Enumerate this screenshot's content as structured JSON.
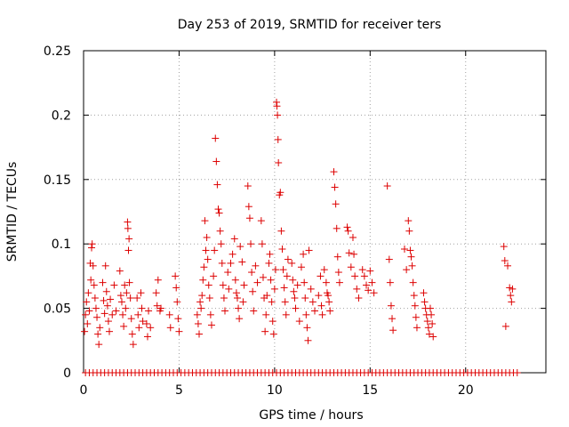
{
  "chart_data": {
    "type": "scatter",
    "title": "Day 253 of 2019, SRMTID for receiver ters",
    "xlabel": "GPS time / hours",
    "ylabel": "SRMTID / TECUs",
    "xlim": [
      0,
      24.2
    ],
    "ylim": [
      0,
      0.25
    ],
    "grid": true,
    "legend": "none",
    "marker": "+",
    "color": "#dd0000",
    "xticks": [
      0,
      5,
      10,
      15,
      20
    ],
    "xtick_labels": [
      "0",
      "5",
      "10",
      "15",
      "20"
    ],
    "yticks": [
      0,
      0.05,
      0.1,
      0.15,
      0.2,
      0.25
    ],
    "ytick_labels": [
      "0",
      "0.05",
      "0.1",
      "0.15",
      "0.2",
      "0.25"
    ],
    "series": [
      {
        "name": "SRMTID",
        "points": [
          [
            0.05,
            0.032
          ],
          [
            0.1,
            0.045
          ],
          [
            0.15,
            0.055
          ],
          [
            0.2,
            0.038
          ],
          [
            0.25,
            0.062
          ],
          [
            0.3,
            0.048
          ],
          [
            0.35,
            0.085
          ],
          [
            0.38,
            0.072
          ],
          [
            0.42,
            0.097
          ],
          [
            0.45,
            0.1
          ],
          [
            0.5,
            0.083
          ],
          [
            0.55,
            0.068
          ],
          [
            0.6,
            0.058
          ],
          [
            0.65,
            0.05
          ],
          [
            0.7,
            0.043
          ],
          [
            0.75,
            0.03
          ],
          [
            0.8,
            0.022
          ],
          [
            0.85,
            0.035
          ],
          [
            1.0,
            0.07
          ],
          [
            1.05,
            0.056
          ],
          [
            1.1,
            0.046
          ],
          [
            1.15,
            0.083
          ],
          [
            1.2,
            0.063
          ],
          [
            1.25,
            0.052
          ],
          [
            1.3,
            0.04
          ],
          [
            1.35,
            0.032
          ],
          [
            1.4,
            0.057
          ],
          [
            1.5,
            0.045
          ],
          [
            1.6,
            0.068
          ],
          [
            1.7,
            0.048
          ],
          [
            1.9,
            0.079
          ],
          [
            1.95,
            0.06
          ],
          [
            2.0,
            0.055
          ],
          [
            2.05,
            0.045
          ],
          [
            2.1,
            0.036
          ],
          [
            2.15,
            0.068
          ],
          [
            2.2,
            0.05
          ],
          [
            2.25,
            0.062
          ],
          [
            2.3,
            0.117
          ],
          [
            2.32,
            0.112
          ],
          [
            2.35,
            0.095
          ],
          [
            2.38,
            0.104
          ],
          [
            2.4,
            0.07
          ],
          [
            2.45,
            0.058
          ],
          [
            2.5,
            0.042
          ],
          [
            2.55,
            0.03
          ],
          [
            2.6,
            0.022
          ],
          [
            2.8,
            0.058
          ],
          [
            2.85,
            0.045
          ],
          [
            2.9,
            0.035
          ],
          [
            3.0,
            0.062
          ],
          [
            3.05,
            0.05
          ],
          [
            3.1,
            0.04
          ],
          [
            3.3,
            0.038
          ],
          [
            3.35,
            0.028
          ],
          [
            3.4,
            0.048
          ],
          [
            3.5,
            0.035
          ],
          [
            3.8,
            0.062
          ],
          [
            3.85,
            0.052
          ],
          [
            3.9,
            0.072
          ],
          [
            4.0,
            0.048
          ],
          [
            4.05,
            0.05
          ],
          [
            4.5,
            0.045
          ],
          [
            4.55,
            0.035
          ],
          [
            4.8,
            0.075
          ],
          [
            4.85,
            0.066
          ],
          [
            4.9,
            0.055
          ],
          [
            4.95,
            0.042
          ],
          [
            5.0,
            0.032
          ],
          [
            5.95,
            0.045
          ],
          [
            6.0,
            0.038
          ],
          [
            6.05,
            0.03
          ],
          [
            6.1,
            0.055
          ],
          [
            6.15,
            0.05
          ],
          [
            6.2,
            0.06
          ],
          [
            6.25,
            0.072
          ],
          [
            6.3,
            0.082
          ],
          [
            6.35,
            0.118
          ],
          [
            6.4,
            0.095
          ],
          [
            6.45,
            0.105
          ],
          [
            6.5,
            0.088
          ],
          [
            6.55,
            0.068
          ],
          [
            6.6,
            0.058
          ],
          [
            6.65,
            0.045
          ],
          [
            6.7,
            0.037
          ],
          [
            6.8,
            0.075
          ],
          [
            6.85,
            0.095
          ],
          [
            6.9,
            0.182
          ],
          [
            6.95,
            0.164
          ],
          [
            7.0,
            0.146
          ],
          [
            7.05,
            0.127
          ],
          [
            7.1,
            0.124
          ],
          [
            7.15,
            0.11
          ],
          [
            7.2,
            0.1
          ],
          [
            7.25,
            0.085
          ],
          [
            7.3,
            0.068
          ],
          [
            7.35,
            0.058
          ],
          [
            7.4,
            0.048
          ],
          [
            7.55,
            0.078
          ],
          [
            7.6,
            0.065
          ],
          [
            7.7,
            0.085
          ],
          [
            7.8,
            0.092
          ],
          [
            7.9,
            0.104
          ],
          [
            7.95,
            0.072
          ],
          [
            8.0,
            0.062
          ],
          [
            8.05,
            0.058
          ],
          [
            8.1,
            0.05
          ],
          [
            8.15,
            0.042
          ],
          [
            8.2,
            0.098
          ],
          [
            8.3,
            0.086
          ],
          [
            8.35,
            0.055
          ],
          [
            8.4,
            0.068
          ],
          [
            8.6,
            0.145
          ],
          [
            8.65,
            0.129
          ],
          [
            8.7,
            0.12
          ],
          [
            8.75,
            0.1
          ],
          [
            8.8,
            0.078
          ],
          [
            8.85,
            0.063
          ],
          [
            8.9,
            0.048
          ],
          [
            9.0,
            0.083
          ],
          [
            9.1,
            0.07
          ],
          [
            9.3,
            0.118
          ],
          [
            9.35,
            0.1
          ],
          [
            9.4,
            0.074
          ],
          [
            9.45,
            0.058
          ],
          [
            9.5,
            0.032
          ],
          [
            9.55,
            0.045
          ],
          [
            9.6,
            0.06
          ],
          [
            9.7,
            0.085
          ],
          [
            9.75,
            0.092
          ],
          [
            9.8,
            0.072
          ],
          [
            9.85,
            0.055
          ],
          [
            9.9,
            0.04
          ],
          [
            9.95,
            0.03
          ],
          [
            10.0,
            0.065
          ],
          [
            10.05,
            0.08
          ],
          [
            10.1,
            0.21
          ],
          [
            10.12,
            0.207
          ],
          [
            10.15,
            0.2
          ],
          [
            10.18,
            0.181
          ],
          [
            10.2,
            0.163
          ],
          [
            10.25,
            0.138
          ],
          [
            10.3,
            0.14
          ],
          [
            10.35,
            0.11
          ],
          [
            10.4,
            0.096
          ],
          [
            10.45,
            0.08
          ],
          [
            10.5,
            0.066
          ],
          [
            10.55,
            0.055
          ],
          [
            10.6,
            0.045
          ],
          [
            10.65,
            0.075
          ],
          [
            10.7,
            0.088
          ],
          [
            10.9,
            0.085
          ],
          [
            10.95,
            0.072
          ],
          [
            11.0,
            0.063
          ],
          [
            11.05,
            0.058
          ],
          [
            11.1,
            0.05
          ],
          [
            11.2,
            0.068
          ],
          [
            11.3,
            0.04
          ],
          [
            11.4,
            0.082
          ],
          [
            11.5,
            0.092
          ],
          [
            11.55,
            0.07
          ],
          [
            11.6,
            0.058
          ],
          [
            11.65,
            0.045
          ],
          [
            11.7,
            0.035
          ],
          [
            11.75,
            0.025
          ],
          [
            11.8,
            0.095
          ],
          [
            11.9,
            0.065
          ],
          [
            12.0,
            0.055
          ],
          [
            12.1,
            0.048
          ],
          [
            12.3,
            0.06
          ],
          [
            12.4,
            0.075
          ],
          [
            12.45,
            0.052
          ],
          [
            12.5,
            0.045
          ],
          [
            12.6,
            0.08
          ],
          [
            12.7,
            0.07
          ],
          [
            12.75,
            0.062
          ],
          [
            12.8,
            0.06
          ],
          [
            12.85,
            0.055
          ],
          [
            12.9,
            0.048
          ],
          [
            13.1,
            0.156
          ],
          [
            13.15,
            0.144
          ],
          [
            13.2,
            0.131
          ],
          [
            13.25,
            0.112
          ],
          [
            13.3,
            0.09
          ],
          [
            13.35,
            0.078
          ],
          [
            13.4,
            0.07
          ],
          [
            13.8,
            0.113
          ],
          [
            13.85,
            0.11
          ],
          [
            13.9,
            0.093
          ],
          [
            14.0,
            0.082
          ],
          [
            14.1,
            0.105
          ],
          [
            14.15,
            0.092
          ],
          [
            14.2,
            0.075
          ],
          [
            14.3,
            0.065
          ],
          [
            14.4,
            0.058
          ],
          [
            14.6,
            0.08
          ],
          [
            14.7,
            0.075
          ],
          [
            14.8,
            0.068
          ],
          [
            14.9,
            0.064
          ],
          [
            15.0,
            0.079
          ],
          [
            15.1,
            0.07
          ],
          [
            15.2,
            0.062
          ],
          [
            15.9,
            0.145
          ],
          [
            16.0,
            0.088
          ],
          [
            16.05,
            0.07
          ],
          [
            16.1,
            0.052
          ],
          [
            16.15,
            0.042
          ],
          [
            16.2,
            0.033
          ],
          [
            16.8,
            0.096
          ],
          [
            16.9,
            0.08
          ],
          [
            17.0,
            0.118
          ],
          [
            17.05,
            0.11
          ],
          [
            17.1,
            0.095
          ],
          [
            17.15,
            0.09
          ],
          [
            17.2,
            0.083
          ],
          [
            17.25,
            0.07
          ],
          [
            17.3,
            0.06
          ],
          [
            17.35,
            0.052
          ],
          [
            17.4,
            0.043
          ],
          [
            17.45,
            0.035
          ],
          [
            17.8,
            0.062
          ],
          [
            17.85,
            0.055
          ],
          [
            17.9,
            0.05
          ],
          [
            17.95,
            0.045
          ],
          [
            18.0,
            0.04
          ],
          [
            18.05,
            0.035
          ],
          [
            18.1,
            0.03
          ],
          [
            18.15,
            0.05
          ],
          [
            18.2,
            0.045
          ],
          [
            18.25,
            0.038
          ],
          [
            18.3,
            0.028
          ],
          [
            22.0,
            0.098
          ],
          [
            22.05,
            0.087
          ],
          [
            22.1,
            0.036
          ],
          [
            22.2,
            0.083
          ],
          [
            22.3,
            0.066
          ],
          [
            22.35,
            0.06
          ],
          [
            22.4,
            0.055
          ],
          [
            22.45,
            0.065
          ]
        ],
        "zero_points_x": [
          0.1,
          0.3,
          0.5,
          0.7,
          0.9,
          1.1,
          1.3,
          1.5,
          1.7,
          1.9,
          2.1,
          2.3,
          2.5,
          2.7,
          2.9,
          3.1,
          3.3,
          3.5,
          3.7,
          3.9,
          4.1,
          4.3,
          4.5,
          4.7,
          4.9,
          5.1,
          5.3,
          5.5,
          5.7,
          5.9,
          6.1,
          6.3,
          6.5,
          6.7,
          6.9,
          7.1,
          7.3,
          7.5,
          7.7,
          7.9,
          8.1,
          8.3,
          8.5,
          8.7,
          8.9,
          9.1,
          9.3,
          9.5,
          9.7,
          9.9,
          10.1,
          10.3,
          10.5,
          10.7,
          10.9,
          11.1,
          11.3,
          11.5,
          11.7,
          11.9,
          12.1,
          12.3,
          12.5,
          12.7,
          12.9,
          13.1,
          13.3,
          13.5,
          13.7,
          13.9,
          14.1,
          14.3,
          14.5,
          14.7,
          14.9,
          15.1,
          15.3,
          15.5,
          15.7,
          15.9,
          16.1,
          16.3,
          16.5,
          16.7,
          16.9,
          17.1,
          17.3,
          17.5,
          17.7,
          17.9,
          18.1,
          18.3,
          18.5,
          18.7,
          18.9,
          19.1,
          19.3,
          19.5,
          19.7,
          19.9,
          20.1,
          20.3,
          20.5,
          20.7,
          20.9,
          21.1,
          21.3,
          21.5,
          21.7,
          21.9,
          22.1,
          22.3,
          22.5,
          22.7
        ]
      }
    ]
  }
}
